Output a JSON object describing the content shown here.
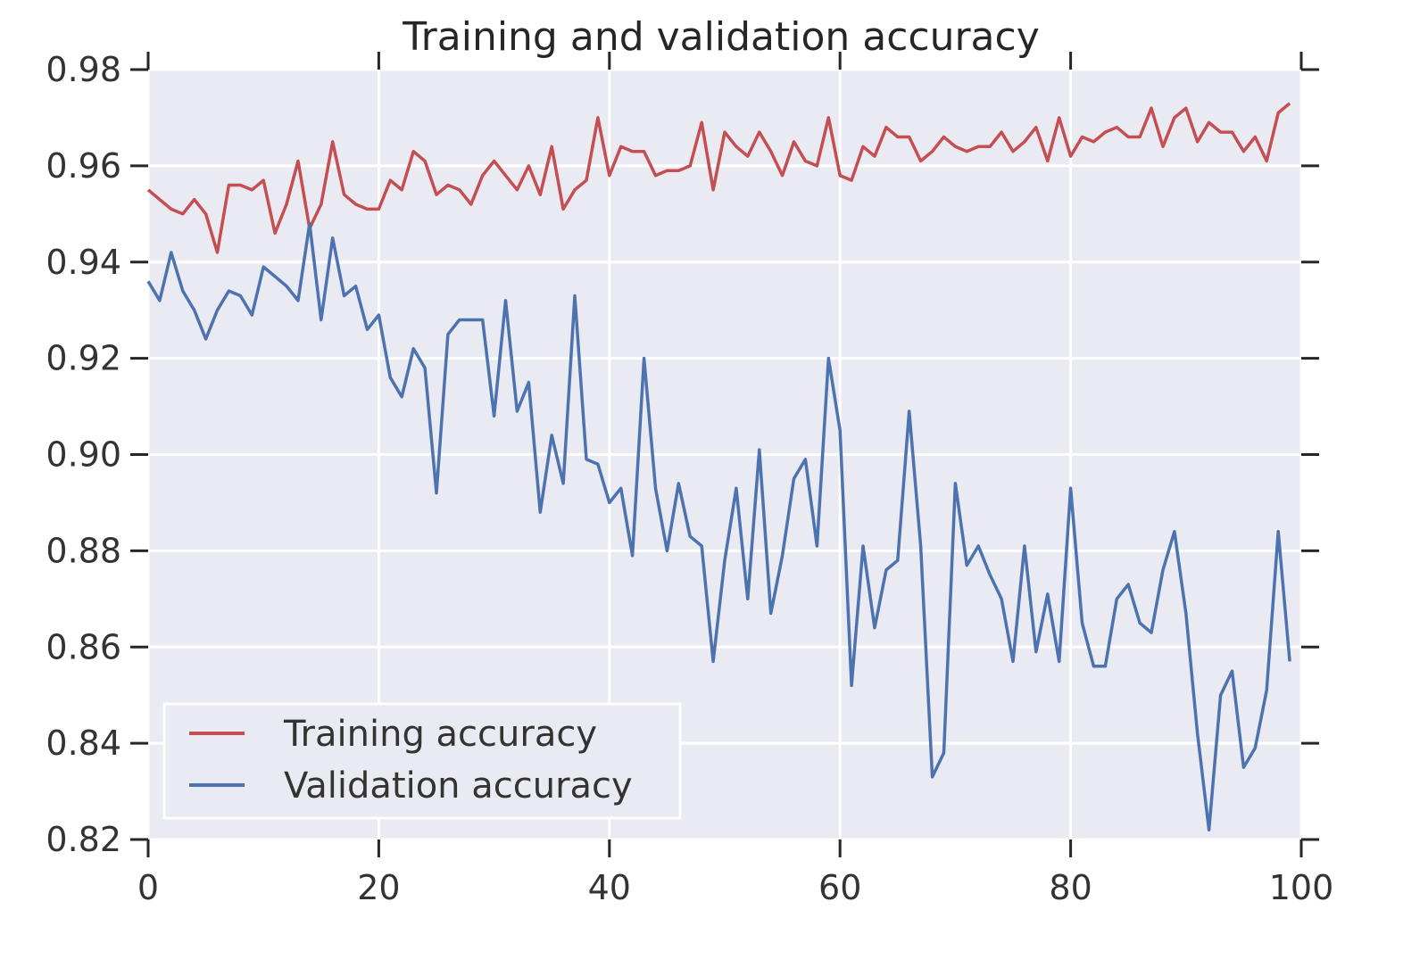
{
  "chart_data": {
    "type": "line",
    "title": "Training and validation accuracy",
    "xlabel": "",
    "ylabel": "",
    "xlim": [
      0,
      100
    ],
    "ylim": [
      0.82,
      0.98
    ],
    "x_ticks": [
      "0",
      "20",
      "40",
      "60",
      "80",
      "100"
    ],
    "y_ticks": [
      "0.82",
      "0.84",
      "0.86",
      "0.88",
      "0.90",
      "0.92",
      "0.94",
      "0.96",
      "0.98"
    ],
    "grid": true,
    "legend_position": "lower-left",
    "series": [
      {
        "name": "Training accuracy",
        "color": "#c44e52",
        "values": [
          0.955,
          0.953,
          0.951,
          0.95,
          0.953,
          0.95,
          0.942,
          0.956,
          0.956,
          0.955,
          0.957,
          0.946,
          0.952,
          0.961,
          0.947,
          0.952,
          0.965,
          0.954,
          0.952,
          0.951,
          0.951,
          0.957,
          0.955,
          0.963,
          0.961,
          0.954,
          0.956,
          0.955,
          0.952,
          0.958,
          0.961,
          0.958,
          0.955,
          0.96,
          0.954,
          0.964,
          0.951,
          0.955,
          0.957,
          0.97,
          0.958,
          0.964,
          0.963,
          0.963,
          0.958,
          0.959,
          0.959,
          0.96,
          0.969,
          0.955,
          0.967,
          0.964,
          0.962,
          0.967,
          0.963,
          0.958,
          0.965,
          0.961,
          0.96,
          0.97,
          0.958,
          0.957,
          0.964,
          0.962,
          0.968,
          0.966,
          0.966,
          0.961,
          0.963,
          0.966,
          0.964,
          0.963,
          0.964,
          0.964,
          0.967,
          0.963,
          0.965,
          0.968,
          0.961,
          0.97,
          0.962,
          0.966,
          0.965,
          0.967,
          0.968,
          0.966,
          0.966,
          0.972,
          0.964,
          0.97,
          0.972,
          0.965,
          0.969,
          0.967,
          0.967,
          0.963,
          0.966,
          0.961,
          0.971,
          0.973
        ]
      },
      {
        "name": "Validation accuracy",
        "color": "#4c72b0",
        "values": [
          0.936,
          0.932,
          0.942,
          0.934,
          0.93,
          0.924,
          0.93,
          0.934,
          0.933,
          0.929,
          0.939,
          0.937,
          0.935,
          0.932,
          0.948,
          0.928,
          0.945,
          0.933,
          0.935,
          0.926,
          0.929,
          0.916,
          0.912,
          0.922,
          0.918,
          0.892,
          0.925,
          0.928,
          0.928,
          0.928,
          0.908,
          0.932,
          0.909,
          0.915,
          0.888,
          0.904,
          0.894,
          0.933,
          0.899,
          0.898,
          0.89,
          0.893,
          0.879,
          0.92,
          0.893,
          0.88,
          0.894,
          0.883,
          0.881,
          0.857,
          0.878,
          0.893,
          0.87,
          0.901,
          0.867,
          0.879,
          0.895,
          0.899,
          0.881,
          0.92,
          0.905,
          0.852,
          0.881,
          0.864,
          0.876,
          0.878,
          0.909,
          0.881,
          0.833,
          0.838,
          0.894,
          0.877,
          0.881,
          0.875,
          0.87,
          0.857,
          0.881,
          0.859,
          0.871,
          0.857,
          0.893,
          0.865,
          0.856,
          0.856,
          0.87,
          0.873,
          0.865,
          0.863,
          0.876,
          0.884,
          0.867,
          0.842,
          0.822,
          0.85,
          0.855,
          0.835,
          0.839,
          0.851,
          0.884,
          0.857
        ]
      }
    ]
  }
}
